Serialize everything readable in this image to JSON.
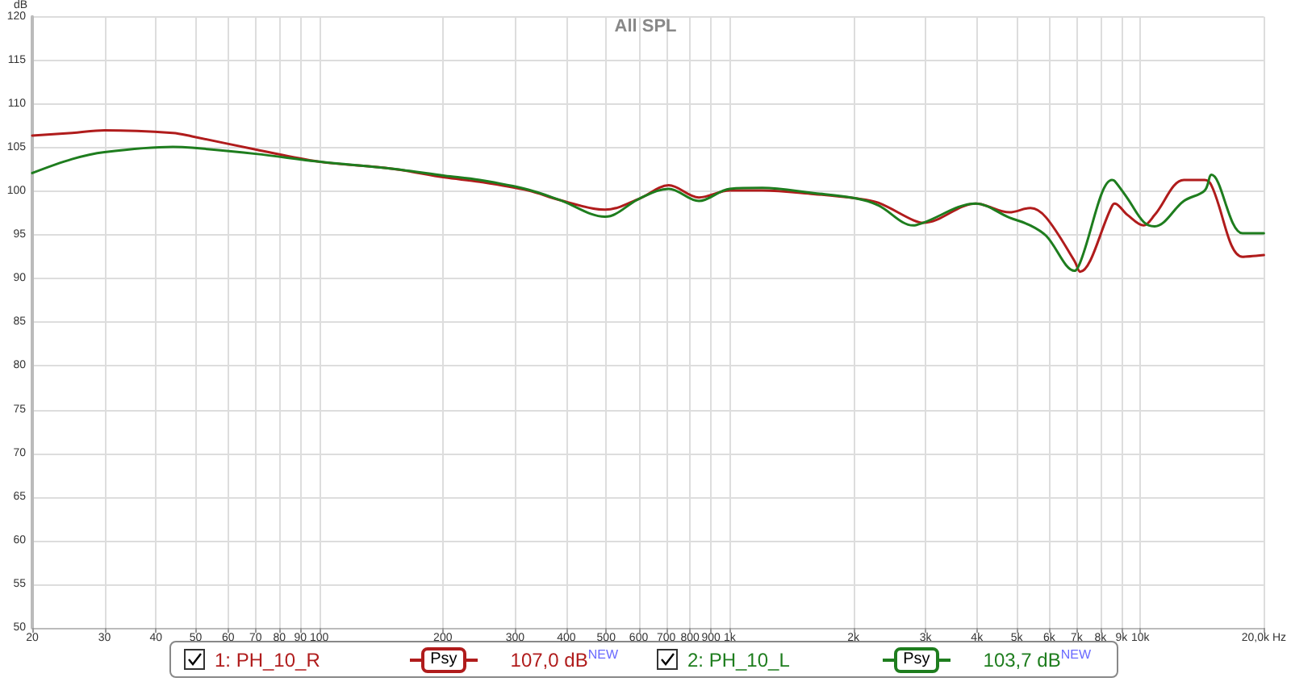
{
  "chart_data": {
    "type": "line",
    "title": "All SPL",
    "ylabel": "dB",
    "x": [
      20,
      25,
      30,
      44,
      49,
      70,
      100,
      150,
      202,
      246,
      323,
      386,
      497,
      604,
      710,
      841,
      1000,
      1200,
      1600,
      2028,
      2300,
      2800,
      2958,
      3974,
      4800,
      5400,
      5900,
      6920,
      7130,
      8530,
      8660,
      9310,
      10190,
      10840,
      12770,
      14350,
      14900,
      17750,
      20000
    ],
    "series": [
      {
        "name": "1: PH_10_R",
        "color": "#b01c1c",
        "values": [
          106.4,
          106.7,
          107.0,
          106.7,
          106.3,
          104.8,
          103.4,
          102.6,
          101.6,
          101.1,
          100.1,
          99.0,
          97.9,
          99.2,
          100.7,
          99.3,
          100.1,
          100.1,
          99.7,
          99.2,
          98.7,
          96.7,
          96.4,
          98.6,
          97.6,
          98.1,
          97.0,
          92.0,
          90.8,
          98.3,
          98.6,
          97.3,
          96.1,
          97.3,
          101.3,
          101.3,
          100.7,
          92.5,
          92.7
        ]
      },
      {
        "name": "2: PH_10_L",
        "color": "#1e7d1e",
        "values": [
          102.1,
          103.7,
          104.5,
          105.1,
          105.0,
          104.3,
          103.4,
          102.6,
          101.8,
          101.3,
          100.2,
          99.0,
          97.1,
          99.2,
          100.3,
          98.9,
          100.3,
          100.4,
          99.8,
          99.2,
          98.4,
          96.1,
          96.4,
          98.6,
          97.0,
          96.1,
          94.9,
          90.9,
          91.8,
          101.3,
          101.2,
          99.2,
          96.5,
          96.0,
          98.9,
          100.1,
          101.9,
          95.2,
          95.2
        ]
      }
    ],
    "log": "x",
    "xlim": [
      20,
      20000
    ],
    "ylim": [
      50,
      120
    ],
    "xticks": [
      20,
      30,
      40,
      50,
      60,
      70,
      80,
      90,
      100,
      200,
      300,
      400,
      500,
      600,
      700,
      800,
      900,
      {
        "value": 1000,
        "label": "1k"
      },
      {
        "value": 2000,
        "label": "2k"
      },
      {
        "value": 3000,
        "label": "3k"
      },
      {
        "value": 4000,
        "label": "4k"
      },
      {
        "value": 5000,
        "label": "5k"
      },
      {
        "value": 6000,
        "label": "6k"
      },
      {
        "value": 7000,
        "label": "7k"
      },
      {
        "value": 8000,
        "label": "8k"
      },
      {
        "value": 9000,
        "label": "9k"
      },
      {
        "value": 10000,
        "label": "10k"
      },
      {
        "value": 20000,
        "label": "20,0k Hz"
      }
    ],
    "yticks": [
      50,
      55,
      60,
      65,
      70,
      75,
      80,
      85,
      90,
      95,
      100,
      105,
      110,
      115,
      120
    ],
    "grid": true,
    "legend": "bottom",
    "marker": "none",
    "line_style": "solid",
    "annotations": [
      "Psy",
      "107,0 dB$^{NEW}$",
      "Psy",
      "103,7 dB$^{NEW}$"
    ]
  }
}
